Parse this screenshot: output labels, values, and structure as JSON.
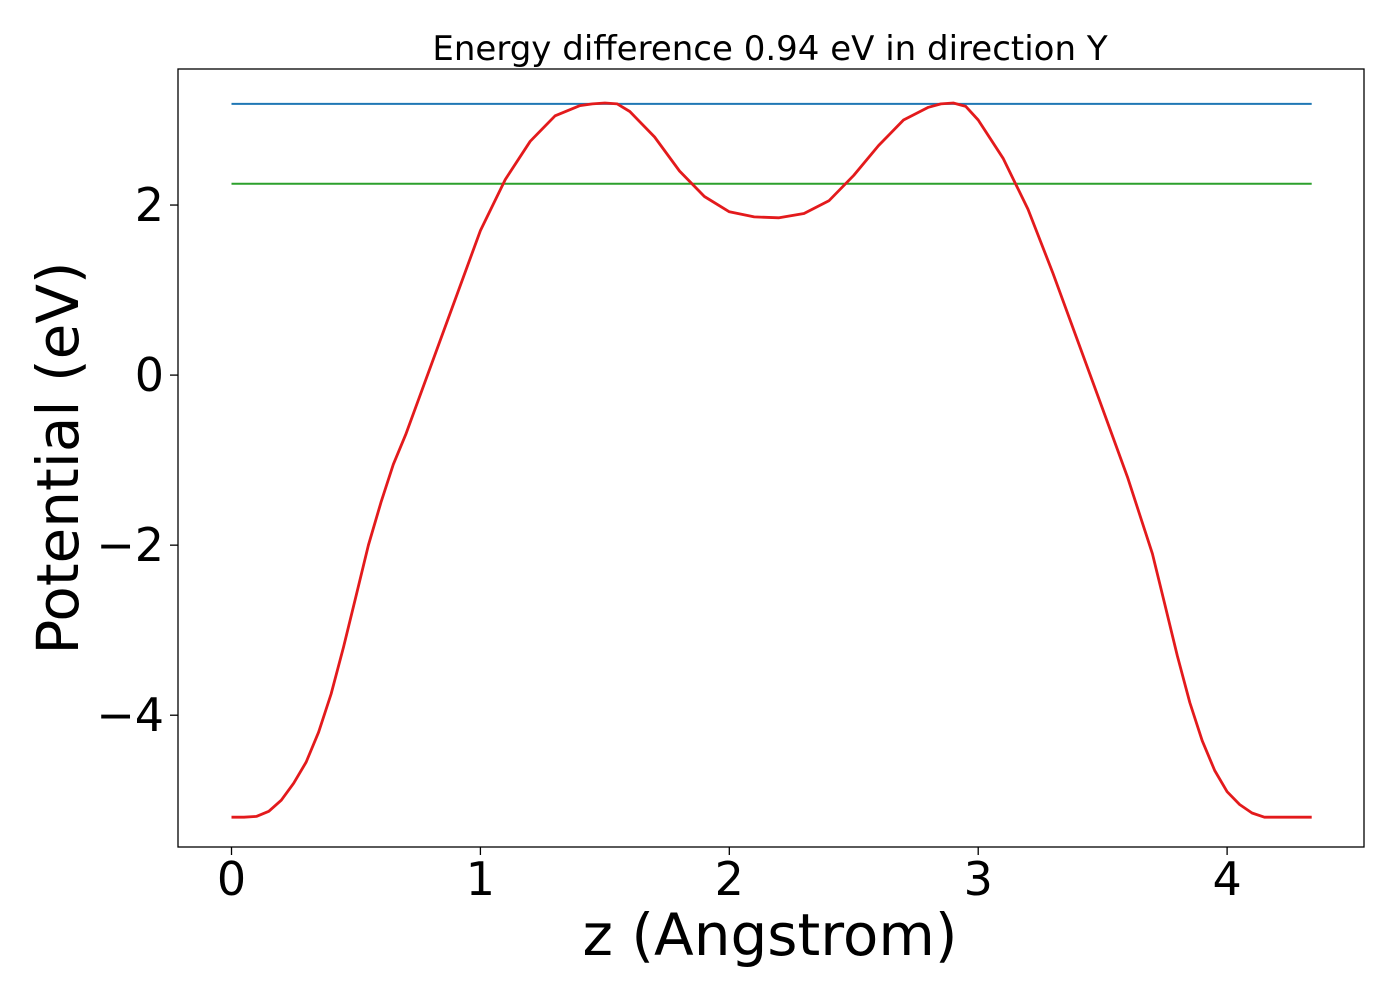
{
  "chart_data": {
    "type": "line",
    "title": "Energy difference 0.94 eV in direction Y",
    "xlabel": "z (Angstrom)",
    "ylabel": "Potential (eV)",
    "xlim": [
      -0.215,
      4.55
    ],
    "ylim": [
      -5.55,
      3.6
    ],
    "x_ticks": [
      0,
      1,
      2,
      3,
      4
    ],
    "x_tick_labels": [
      "0",
      "1",
      "2",
      "3",
      "4"
    ],
    "y_ticks": [
      -4,
      -2,
      0,
      2
    ],
    "y_tick_labels": [
      "−4",
      "−2",
      "0",
      "2"
    ],
    "grid": false,
    "series": [
      {
        "color": "#1f77b4",
        "x": [
          0,
          4.34
        ],
        "y": [
          3.19,
          3.19
        ]
      },
      {
        "color": "#2ca02c",
        "x": [
          0,
          4.34
        ],
        "y": [
          2.25,
          2.25
        ]
      },
      {
        "color": "#e31a1c",
        "x": [
          0,
          0.05,
          0.1,
          0.15,
          0.2,
          0.25,
          0.3,
          0.35,
          0.4,
          0.45,
          0.5,
          0.55,
          0.6,
          0.65,
          0.7,
          0.8,
          0.9,
          1.0,
          1.1,
          1.2,
          1.3,
          1.4,
          1.45,
          1.5,
          1.55,
          1.6,
          1.7,
          1.8,
          1.9,
          2.0,
          2.1,
          2.2,
          2.3,
          2.4,
          2.5,
          2.6,
          2.7,
          2.8,
          2.85,
          2.9,
          2.95,
          3.0,
          3.1,
          3.2,
          3.3,
          3.4,
          3.5,
          3.6,
          3.7,
          3.75,
          3.8,
          3.85,
          3.9,
          3.95,
          4.0,
          4.05,
          4.1,
          4.15,
          4.2,
          4.25,
          4.3,
          4.34
        ],
        "y": [
          -5.2,
          -5.2,
          -5.19,
          -5.13,
          -5.0,
          -4.8,
          -4.55,
          -4.2,
          -3.75,
          -3.2,
          -2.6,
          -2.0,
          -1.5,
          -1.05,
          -0.7,
          0.1,
          0.9,
          1.7,
          2.3,
          2.75,
          3.05,
          3.17,
          3.19,
          3.2,
          3.19,
          3.1,
          2.8,
          2.4,
          2.1,
          1.92,
          1.86,
          1.85,
          1.9,
          2.05,
          2.35,
          2.7,
          3.0,
          3.15,
          3.19,
          3.2,
          3.16,
          3.0,
          2.55,
          1.95,
          1.2,
          0.4,
          -0.4,
          -1.2,
          -2.1,
          -2.7,
          -3.3,
          -3.85,
          -4.3,
          -4.65,
          -4.9,
          -5.05,
          -5.15,
          -5.2,
          -5.2,
          -5.2,
          -5.2,
          -5.2
        ]
      }
    ]
  }
}
